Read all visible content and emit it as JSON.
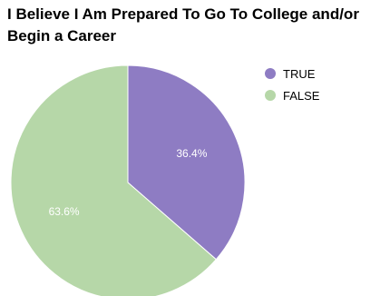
{
  "chart_data": {
    "type": "pie",
    "title": "I Believe I Am Prepared To Go To College and/or Begin a Career",
    "legend_position": "top-right",
    "slices": [
      {
        "label": "TRUE",
        "value": 36.4,
        "display": "36.4%",
        "color": "#8e7cc3"
      },
      {
        "label": "FALSE",
        "value": 63.6,
        "display": "63.6%",
        "color": "#b6d7a8"
      }
    ]
  }
}
